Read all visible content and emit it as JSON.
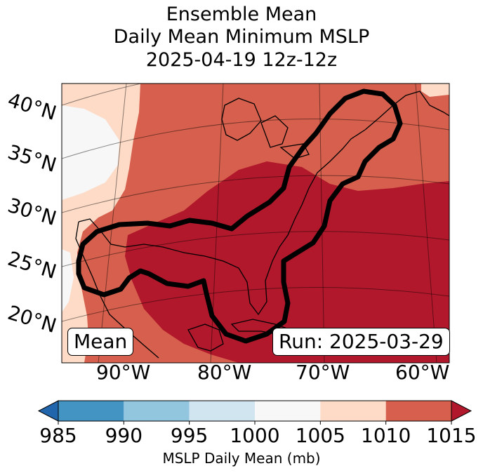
{
  "title": {
    "line1": "Ensemble Mean",
    "line2": "Daily Mean Minimum MSLP",
    "line3": "2025-04-19 12z-12z"
  },
  "map": {
    "lat_labels": [
      "40°N",
      "35°N",
      "30°N",
      "25°N",
      "20°N"
    ],
    "lon_labels": [
      "90°W",
      "80°W",
      "70°W",
      "60°W"
    ],
    "left_box": "Mean",
    "run_box": "Run: 2025-03-29",
    "colors": {
      "c1000_1005": "#f7f7f7",
      "c1005_1010": "#fddbc7",
      "c1010_1015": "#d6604d",
      "c1015_plus": "#b2182b",
      "contour": "#000000"
    }
  },
  "colorbar": {
    "bins": [
      {
        "from": 985,
        "to": 990,
        "color": "#4393c3"
      },
      {
        "from": 990,
        "to": 995,
        "color": "#92c5de"
      },
      {
        "from": 995,
        "to": 1000,
        "color": "#d1e5f0"
      },
      {
        "from": 1000,
        "to": 1005,
        "color": "#f7f7f7"
      },
      {
        "from": 1005,
        "to": 1010,
        "color": "#fddbc7"
      },
      {
        "from": 1010,
        "to": 1015,
        "color": "#d6604d"
      }
    ],
    "under_color": "#2166ac",
    "over_color": "#b2182b",
    "ticks": [
      "985",
      "990",
      "995",
      "1000",
      "1005",
      "1010",
      "1015"
    ],
    "label": "MSLP Daily Mean (mb)"
  }
}
